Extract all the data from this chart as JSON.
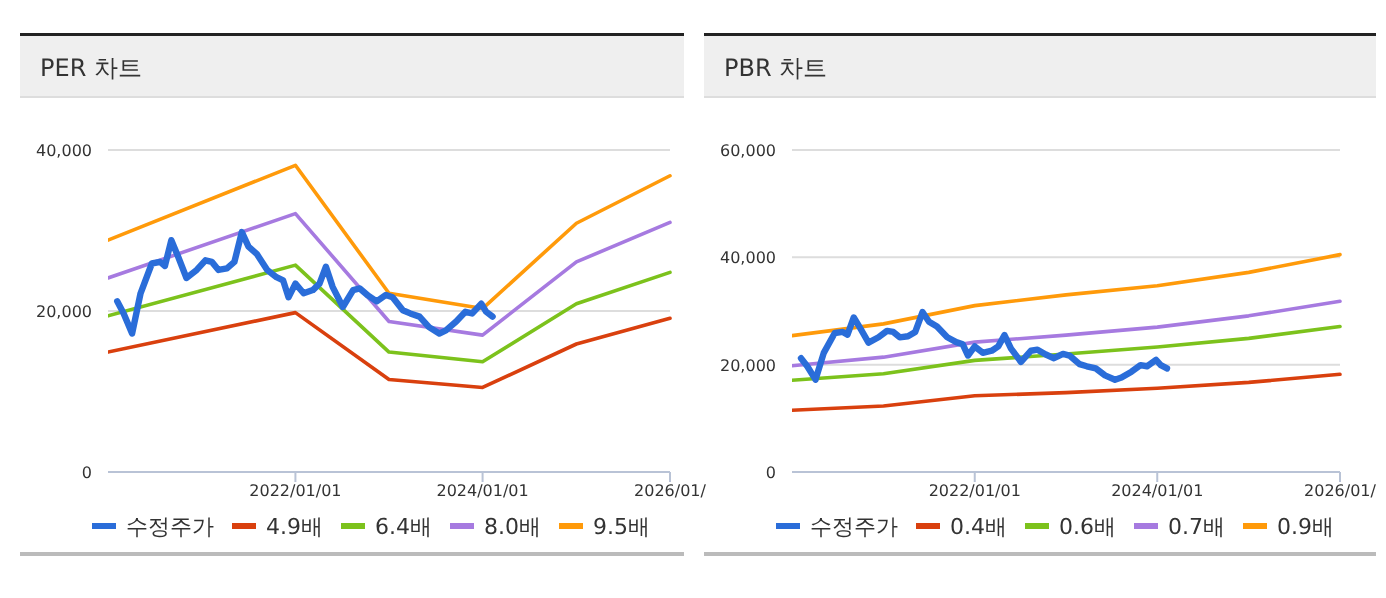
{
  "chart_data": [
    {
      "type": "line",
      "title": "PER 차트",
      "xlim": [
        "2020-01-01",
        "2026-01-01"
      ],
      "ylim": [
        0,
        40000
      ],
      "yticks": [
        {
          "value": 0,
          "label": "0"
        },
        {
          "value": 20000,
          "label": "20,000"
        },
        {
          "value": 40000,
          "label": "40,000"
        }
      ],
      "xticks": [
        {
          "value": "2022-01-01",
          "label": "2022/01/01"
        },
        {
          "value": "2024-01-01",
          "label": "2024/01/01"
        },
        {
          "value": "2026-01-01",
          "label": "2026/01/"
        }
      ],
      "grid": "y",
      "legend": "bottom",
      "marker": "none",
      "line_style": "solid",
      "series": [
        {
          "name": "수정주가",
          "color": "#2a6dd9",
          "x": [
            "2020-02-06",
            "2020-03-02",
            "2020-04-04",
            "2020-05-07",
            "2020-06-20",
            "2020-07-22",
            "2020-08-10",
            "2020-09-04",
            "2020-10-01",
            "2020-11-02",
            "2020-12-12",
            "2021-01-15",
            "2021-02-09",
            "2021-03-07",
            "2021-04-09",
            "2021-05-08",
            "2021-06-06",
            "2021-07-02",
            "2021-08-03",
            "2021-09-13",
            "2021-10-19",
            "2021-11-14",
            "2021-12-05",
            "2022-01-01",
            "2022-02-02",
            "2022-03-10",
            "2022-04-05",
            "2022-04-30",
            "2022-05-26",
            "2022-07-05",
            "2022-08-14",
            "2022-09-09",
            "2022-10-12",
            "2022-11-14",
            "2022-12-20",
            "2023-01-15",
            "2023-02-24",
            "2023-03-25",
            "2023-04-30",
            "2023-06-06",
            "2023-07-16",
            "2023-08-11",
            "2023-09-20",
            "2023-10-26",
            "2023-11-21",
            "2023-12-27",
            "2024-01-15",
            "2024-02-09"
          ],
          "values": [
            21200,
            19700,
            17200,
            22200,
            25900,
            26100,
            25600,
            28800,
            26700,
            24100,
            25100,
            26300,
            26100,
            25100,
            25300,
            26100,
            29800,
            28000,
            27100,
            25100,
            24200,
            23800,
            21700,
            23400,
            22200,
            22600,
            23400,
            25500,
            23000,
            20500,
            22600,
            22800,
            21900,
            21200,
            22000,
            21700,
            20100,
            19700,
            19300,
            18000,
            17200,
            17600,
            18700,
            19900,
            19700,
            20900,
            19900,
            19300
          ]
        },
        {
          "name": "4.9배",
          "color": "#d9400e",
          "x": [
            "2020-01-01",
            "2022-01-01",
            "2023-01-01",
            "2024-01-01",
            "2025-01-01",
            "2026-01-01"
          ],
          "values": [
            14900,
            19800,
            11500,
            10500,
            15900,
            19100
          ]
        },
        {
          "name": "6.4배",
          "color": "#7cc21c",
          "x": [
            "2020-01-01",
            "2022-01-01",
            "2023-01-01",
            "2024-01-01",
            "2025-01-01",
            "2026-01-01"
          ],
          "values": [
            19400,
            25700,
            14900,
            13700,
            20900,
            24800
          ]
        },
        {
          "name": "8.0배",
          "color": "#a67ae0",
          "x": [
            "2020-01-01",
            "2022-01-01",
            "2023-01-01",
            "2024-01-01",
            "2025-01-01",
            "2026-01-01"
          ],
          "values": [
            24100,
            32100,
            18700,
            17000,
            26100,
            31000
          ]
        },
        {
          "name": "9.5배",
          "color": "#ff9a0a",
          "x": [
            "2020-01-01",
            "2022-01-01",
            "2023-01-01",
            "2024-01-01",
            "2025-01-01",
            "2026-01-01"
          ],
          "values": [
            28800,
            38100,
            22200,
            20300,
            30900,
            36800
          ]
        }
      ]
    },
    {
      "type": "line",
      "title": "PBR 차트",
      "xlim": [
        "2020-01-01",
        "2026-01-01"
      ],
      "ylim": [
        0,
        60000
      ],
      "yticks": [
        {
          "value": 0,
          "label": "0"
        },
        {
          "value": 20000,
          "label": "20,000"
        },
        {
          "value": 40000,
          "label": "40,000"
        },
        {
          "value": 60000,
          "label": "60,000"
        }
      ],
      "xticks": [
        {
          "value": "2022-01-01",
          "label": "2022/01/01"
        },
        {
          "value": "2024-01-01",
          "label": "2024/01/01"
        },
        {
          "value": "2026-01-01",
          "label": "2026/01/"
        }
      ],
      "grid": "y",
      "legend": "bottom",
      "marker": "none",
      "line_style": "solid",
      "series": [
        {
          "name": "수정주가",
          "color": "#2a6dd9",
          "x": [
            "2020-02-06",
            "2020-03-02",
            "2020-04-04",
            "2020-05-07",
            "2020-06-20",
            "2020-07-22",
            "2020-08-10",
            "2020-09-04",
            "2020-10-01",
            "2020-11-02",
            "2020-12-12",
            "2021-01-15",
            "2021-02-09",
            "2021-03-07",
            "2021-04-09",
            "2021-05-08",
            "2021-06-06",
            "2021-07-02",
            "2021-08-03",
            "2021-09-13",
            "2021-10-19",
            "2021-11-14",
            "2021-12-05",
            "2022-01-01",
            "2022-02-02",
            "2022-03-10",
            "2022-04-05",
            "2022-04-30",
            "2022-05-26",
            "2022-07-05",
            "2022-08-14",
            "2022-09-09",
            "2022-10-12",
            "2022-11-14",
            "2022-12-20",
            "2023-01-15",
            "2023-02-24",
            "2023-03-25",
            "2023-04-30",
            "2023-06-06",
            "2023-07-16",
            "2023-08-11",
            "2023-09-20",
            "2023-10-26",
            "2023-11-21",
            "2023-12-27",
            "2024-01-15",
            "2024-02-09"
          ],
          "values": [
            21200,
            19700,
            17200,
            22200,
            25900,
            26100,
            25600,
            28800,
            26700,
            24100,
            25100,
            26300,
            26100,
            25100,
            25300,
            26100,
            29800,
            28000,
            27100,
            25100,
            24200,
            23800,
            21700,
            23400,
            22200,
            22600,
            23400,
            25500,
            23000,
            20500,
            22600,
            22800,
            21900,
            21200,
            22000,
            21700,
            20100,
            19700,
            19300,
            18000,
            17200,
            17600,
            18700,
            19900,
            19700,
            20900,
            19900,
            19300
          ]
        },
        {
          "name": "0.4배",
          "color": "#d9400e",
          "x": [
            "2020-01-01",
            "2021-01-01",
            "2022-01-01",
            "2023-01-01",
            "2024-01-01",
            "2025-01-01",
            "2026-01-01"
          ],
          "values": [
            11500,
            12300,
            14200,
            14800,
            15600,
            16700,
            18200
          ]
        },
        {
          "name": "0.6배",
          "color": "#7cc21c",
          "x": [
            "2020-01-01",
            "2021-01-01",
            "2022-01-01",
            "2023-01-01",
            "2024-01-01",
            "2025-01-01",
            "2026-01-01"
          ],
          "values": [
            17100,
            18300,
            20800,
            22000,
            23300,
            24900,
            27100
          ]
        },
        {
          "name": "0.7배",
          "color": "#a67ae0",
          "x": [
            "2020-01-01",
            "2021-01-01",
            "2022-01-01",
            "2023-01-01",
            "2024-01-01",
            "2025-01-01",
            "2026-01-01"
          ],
          "values": [
            19800,
            21400,
            24200,
            25500,
            27000,
            29100,
            31800
          ]
        },
        {
          "name": "0.9배",
          "color": "#ff9a0a",
          "x": [
            "2020-01-01",
            "2021-01-01",
            "2022-01-01",
            "2023-01-01",
            "2024-01-01",
            "2025-01-01",
            "2026-01-01"
          ],
          "values": [
            25400,
            27600,
            31000,
            33000,
            34700,
            37200,
            40500
          ]
        }
      ]
    }
  ]
}
